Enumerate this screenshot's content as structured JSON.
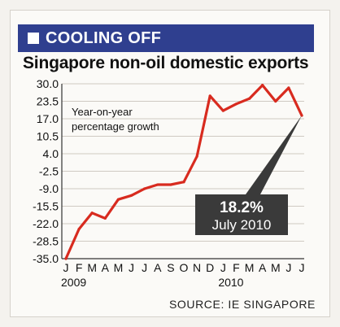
{
  "header": {
    "label": "COOLING OFF"
  },
  "chart_data": {
    "type": "line",
    "title": "Singapore non-oil domestic exports",
    "annotation_text": "Year-on-year\npercentage growth",
    "callout": {
      "value_label": "18.2%",
      "date_label": "July 2010"
    },
    "source": "SOURCE: IE SINGAPORE",
    "y_ticks": [
      "30.0",
      "23.5",
      "17.0",
      "10.5",
      "4.0",
      "-2.5",
      "-9.0",
      "-15.5",
      "-22.0",
      "-28.5",
      "-35.0"
    ],
    "ylim": [
      -35.0,
      30.0
    ],
    "x_labels": [
      "J",
      "F",
      "M",
      "A",
      "M",
      "J",
      "J",
      "A",
      "S",
      "O",
      "N",
      "D",
      "J",
      "F",
      "M",
      "A",
      "M",
      "J",
      "J"
    ],
    "year_labels": [
      {
        "label": "2009",
        "index": 0
      },
      {
        "label": "2010",
        "index": 12
      }
    ],
    "values": [
      -35.0,
      -24.0,
      -18.0,
      -20.0,
      -13.0,
      -11.5,
      -9.0,
      -7.5,
      -7.5,
      -6.5,
      3.0,
      25.5,
      20.0,
      22.5,
      24.5,
      29.5,
      23.5,
      28.5,
      18.2
    ],
    "grid": true,
    "colors": {
      "line": "#d82b1f",
      "callout": "#3a3a3a",
      "grid": "#cfcac2"
    }
  }
}
